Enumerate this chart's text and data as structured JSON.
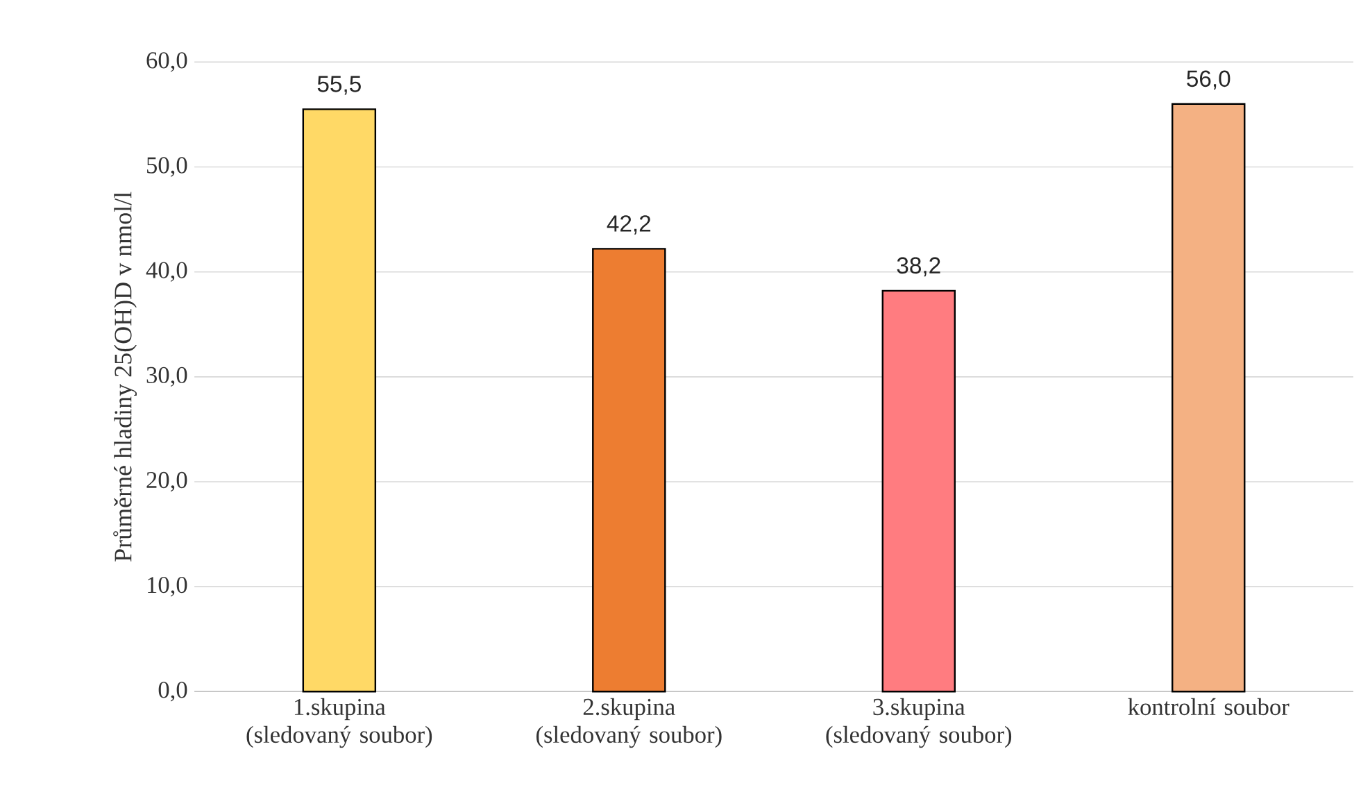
{
  "chart_data": {
    "type": "bar",
    "ylabel": "Průměrné hladiny 25(OH)D v nmol/l",
    "categories": [
      "1.skupina (sledovaný soubor)",
      "2.skupina (sledovaný soubor)",
      "3.skupina (sledovaný soubor)",
      "kontrolní soubor"
    ],
    "values": [
      55.5,
      42.2,
      38.2,
      56.0
    ],
    "value_labels": [
      "55,5",
      "42,2",
      "38,2",
      "56,0"
    ],
    "colors": [
      "#ffd966",
      "#ed7d31",
      "#ff7c80",
      "#f4b183"
    ],
    "ylim": [
      0,
      60
    ],
    "yticks": [
      {
        "value": 0,
        "label": "0,0"
      },
      {
        "value": 10,
        "label": "10,0"
      },
      {
        "value": 20,
        "label": "20,0"
      },
      {
        "value": 30,
        "label": "30,0"
      },
      {
        "value": 40,
        "label": "40,0"
      },
      {
        "value": 50,
        "label": "50,0"
      },
      {
        "value": 60,
        "label": "60,0"
      }
    ],
    "grid": "y"
  }
}
